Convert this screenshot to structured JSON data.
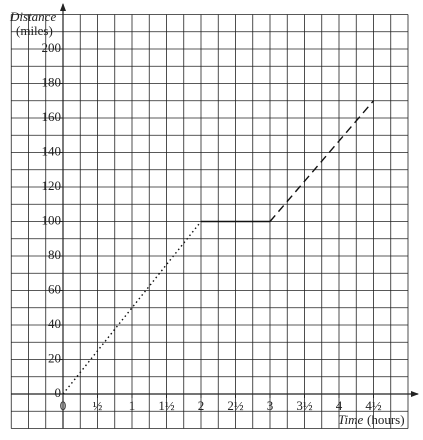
{
  "chart_data": {
    "type": "line",
    "y_label": "Distance",
    "y_unit": "(miles)",
    "x_label": "Time",
    "x_unit": "(hours)",
    "xlim": [
      -0.75,
      5
    ],
    "ylim": [
      -20,
      220
    ],
    "xticks": [
      0,
      {
        "value": 0.5,
        "label": "½"
      },
      1,
      {
        "value": 1.5,
        "label": "1½"
      },
      2,
      {
        "value": 2.5,
        "label": "2½"
      },
      3,
      {
        "value": 3.5,
        "label": "3½"
      },
      4,
      {
        "value": 4.5,
        "label": "4½"
      }
    ],
    "yticks": [
      0,
      20,
      40,
      60,
      80,
      100,
      120,
      140,
      160,
      180,
      200
    ],
    "x_minor_step": 0.25,
    "y_minor_step": 10,
    "grid": true,
    "series": [
      {
        "color": "#111",
        "style": "dotted",
        "x": [
          0,
          2
        ],
        "values": [
          0,
          100
        ]
      },
      {
        "color": "#111",
        "style": "solid",
        "x": [
          2,
          3
        ],
        "values": [
          100,
          100
        ]
      },
      {
        "color": "#111",
        "style": "dashed",
        "x": [
          3,
          4.5
        ],
        "values": [
          100,
          170
        ]
      }
    ]
  }
}
